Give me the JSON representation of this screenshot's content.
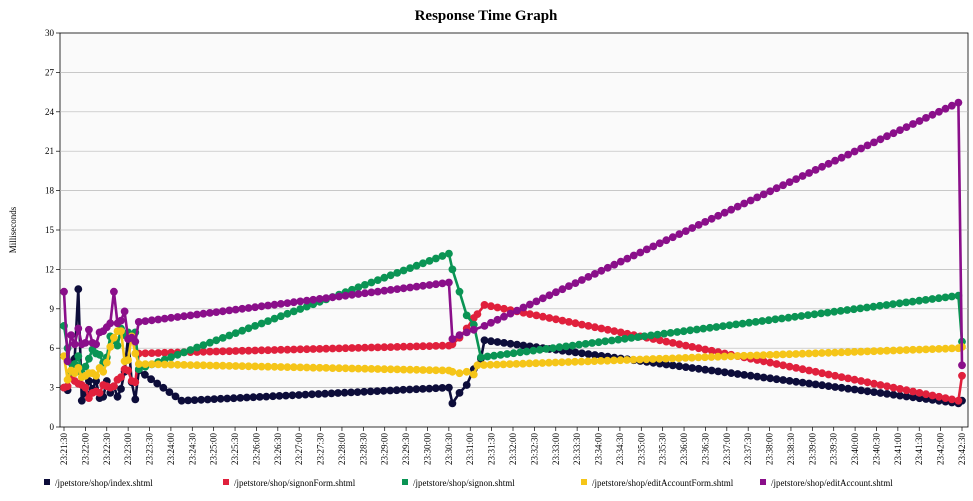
{
  "chart_data": {
    "type": "line",
    "title": "Response Time Graph",
    "ylabel": "Milliseconds",
    "xlabel": "",
    "ylim": [
      0,
      30
    ],
    "yticks": [
      0,
      3,
      6,
      9,
      12,
      15,
      18,
      21,
      24,
      27,
      30
    ],
    "x_start": "23:21:30",
    "x_end": "23:42:30",
    "grid": true,
    "legend": "bottom",
    "x_tick_labels": [
      "23:21:30",
      "23:22:00",
      "23:22:30",
      "23:23:00",
      "23:23:30",
      "23:24:00",
      "23:24:30",
      "23:25:00",
      "23:25:30",
      "23:26:00",
      "23:26:30",
      "23:27:00",
      "23:27:30",
      "23:28:00",
      "23:28:30",
      "23:29:00",
      "23:29:30",
      "23:30:00",
      "23:30:30",
      "23:31:00",
      "23:31:30",
      "23:32:00",
      "23:32:30",
      "23:33:00",
      "23:33:30",
      "23:34:00",
      "23:34:30",
      "23:35:00",
      "23:35:30",
      "23:36:00",
      "23:36:30",
      "23:37:00",
      "23:37:30",
      "23:38:00",
      "23:38:30",
      "23:39:00",
      "23:39:30",
      "23:40:00",
      "23:40:30",
      "23:41:00",
      "23:41:30",
      "23:42:00",
      "23:42:30"
    ],
    "series": [
      {
        "name": "/jpetstore/shop/index.shtml",
        "color": "#0d0d3a",
        "points": [
          [
            "23:21:30",
            3.0
          ],
          [
            "23:21:35",
            2.8
          ],
          [
            "23:21:40",
            4.9
          ],
          [
            "23:21:45",
            5.2
          ],
          [
            "23:21:50",
            10.5
          ],
          [
            "23:21:55",
            2.0
          ],
          [
            "23:22:00",
            2.6
          ],
          [
            "23:22:05",
            3.5
          ],
          [
            "23:22:10",
            2.9
          ],
          [
            "23:22:15",
            3.5
          ],
          [
            "23:22:20",
            2.2
          ],
          [
            "23:22:25",
            2.3
          ],
          [
            "23:22:30",
            3.5
          ],
          [
            "23:22:35",
            2.6
          ],
          [
            "23:22:40",
            3.1
          ],
          [
            "23:22:45",
            2.3
          ],
          [
            "23:22:50",
            2.9
          ],
          [
            "23:22:55",
            4.2
          ],
          [
            "23:23:00",
            6.9
          ],
          [
            "23:23:05",
            3.4
          ],
          [
            "23:23:10",
            2.1
          ],
          [
            "23:23:15",
            4.3
          ],
          [
            "23:24:15",
            2.0
          ],
          [
            "23:30:30",
            3.0
          ],
          [
            "23:30:35",
            1.8
          ],
          [
            "23:30:45",
            2.6
          ],
          [
            "23:30:55",
            3.2
          ],
          [
            "23:31:05",
            4.4
          ],
          [
            "23:31:15",
            5.2
          ],
          [
            "23:31:20",
            6.6
          ],
          [
            "23:42:25",
            1.8
          ],
          [
            "23:42:30",
            2.0
          ]
        ]
      },
      {
        "name": "/jpetstore/shop/signonForm.shtml",
        "color": "#e0203c",
        "points": [
          [
            "23:21:30",
            3.0
          ],
          [
            "23:21:35",
            3.1
          ],
          [
            "23:21:40",
            3.9
          ],
          [
            "23:21:45",
            3.5
          ],
          [
            "23:21:50",
            3.3
          ],
          [
            "23:21:55",
            3.2
          ],
          [
            "23:22:00",
            3.0
          ],
          [
            "23:22:05",
            2.2
          ],
          [
            "23:22:10",
            2.6
          ],
          [
            "23:22:15",
            2.7
          ],
          [
            "23:22:20",
            2.6
          ],
          [
            "23:22:25",
            3.2
          ],
          [
            "23:22:30",
            3.1
          ],
          [
            "23:22:35",
            3.0
          ],
          [
            "23:22:40",
            3.1
          ],
          [
            "23:22:45",
            3.6
          ],
          [
            "23:22:50",
            3.8
          ],
          [
            "23:22:55",
            4.4
          ],
          [
            "23:23:00",
            4.3
          ],
          [
            "23:23:05",
            3.5
          ],
          [
            "23:23:10",
            3.4
          ],
          [
            "23:23:15",
            5.6
          ],
          [
            "23:30:30",
            6.2
          ],
          [
            "23:30:35",
            6.3
          ],
          [
            "23:30:45",
            6.8
          ],
          [
            "23:30:55",
            7.5
          ],
          [
            "23:31:05",
            8.3
          ],
          [
            "23:31:10",
            8.6
          ],
          [
            "23:31:20",
            9.3
          ],
          [
            "23:42:25",
            2.0
          ],
          [
            "23:42:30",
            3.9
          ]
        ]
      },
      {
        "name": "/jpetstore/shop/signon.shtml",
        "color": "#0a9454",
        "points": [
          [
            "23:21:30",
            7.7
          ],
          [
            "23:21:35",
            6.0
          ],
          [
            "23:21:40",
            4.2
          ],
          [
            "23:21:45",
            4.8
          ],
          [
            "23:21:50",
            5.4
          ],
          [
            "23:21:55",
            4.1
          ],
          [
            "23:22:00",
            4.6
          ],
          [
            "23:22:05",
            5.2
          ],
          [
            "23:22:10",
            5.9
          ],
          [
            "23:22:15",
            5.6
          ],
          [
            "23:22:20",
            5.5
          ],
          [
            "23:22:25",
            4.9
          ],
          [
            "23:22:30",
            5.3
          ],
          [
            "23:22:35",
            6.9
          ],
          [
            "23:22:40",
            6.6
          ],
          [
            "23:22:45",
            6.2
          ],
          [
            "23:22:50",
            7.5
          ],
          [
            "23:22:55",
            7.0
          ],
          [
            "23:23:00",
            7.2
          ],
          [
            "23:23:05",
            7.0
          ],
          [
            "23:23:10",
            7.2
          ],
          [
            "23:23:15",
            4.4
          ],
          [
            "23:30:30",
            13.2
          ],
          [
            "23:30:35",
            12.0
          ],
          [
            "23:30:45",
            10.3
          ],
          [
            "23:30:55",
            8.5
          ],
          [
            "23:31:05",
            7.8
          ],
          [
            "23:31:15",
            5.3
          ],
          [
            "23:42:25",
            10.0
          ],
          [
            "23:42:30",
            6.5
          ]
        ]
      },
      {
        "name": "/jpetstore/shop/editAccountForm.shtml",
        "color": "#f5c518",
        "points": [
          [
            "23:21:30",
            5.4
          ],
          [
            "23:21:35",
            3.6
          ],
          [
            "23:21:40",
            4.3
          ],
          [
            "23:21:45",
            4.1
          ],
          [
            "23:21:50",
            4.5
          ],
          [
            "23:21:55",
            3.8
          ],
          [
            "23:22:00",
            3.9
          ],
          [
            "23:22:05",
            4.1
          ],
          [
            "23:22:10",
            4.1
          ],
          [
            "23:22:15",
            3.9
          ],
          [
            "23:22:20",
            4.5
          ],
          [
            "23:22:25",
            4.2
          ],
          [
            "23:22:30",
            4.9
          ],
          [
            "23:22:35",
            6.1
          ],
          [
            "23:22:40",
            6.8
          ],
          [
            "23:22:45",
            7.3
          ],
          [
            "23:22:50",
            7.3
          ],
          [
            "23:22:55",
            5.0
          ],
          [
            "23:23:00",
            5.1
          ],
          [
            "23:23:05",
            6.9
          ],
          [
            "23:23:10",
            5.6
          ],
          [
            "23:23:15",
            4.8
          ],
          [
            "23:30:30",
            4.3
          ],
          [
            "23:30:35",
            4.2
          ],
          [
            "23:30:45",
            4.1
          ],
          [
            "23:30:55",
            4.2
          ],
          [
            "23:31:05",
            4.0
          ],
          [
            "23:31:10",
            4.7
          ],
          [
            "23:42:25",
            6.0
          ],
          [
            "23:42:30",
            6.1
          ]
        ]
      },
      {
        "name": "/jpetstore/shop/editAccount.shtml",
        "color": "#8a0f8a",
        "points": [
          [
            "23:21:30",
            10.3
          ],
          [
            "23:21:35",
            5.0
          ],
          [
            "23:21:40",
            7.0
          ],
          [
            "23:21:45",
            6.3
          ],
          [
            "23:21:50",
            7.5
          ],
          [
            "23:21:55",
            6.3
          ],
          [
            "23:22:00",
            6.4
          ],
          [
            "23:22:05",
            7.4
          ],
          [
            "23:22:10",
            6.4
          ],
          [
            "23:22:15",
            6.3
          ],
          [
            "23:22:20",
            7.2
          ],
          [
            "23:22:25",
            7.3
          ],
          [
            "23:22:30",
            7.6
          ],
          [
            "23:22:35",
            7.9
          ],
          [
            "23:22:40",
            10.3
          ],
          [
            "23:22:45",
            7.9
          ],
          [
            "23:22:50",
            8.1
          ],
          [
            "23:22:55",
            8.8
          ],
          [
            "23:23:00",
            6.7
          ],
          [
            "23:23:05",
            6.8
          ],
          [
            "23:23:10",
            6.5
          ],
          [
            "23:23:15",
            8.0
          ],
          [
            "23:30:30",
            11.0
          ],
          [
            "23:30:35",
            6.7
          ],
          [
            "23:30:45",
            7.0
          ],
          [
            "23:30:55",
            7.2
          ],
          [
            "23:31:05",
            7.4
          ],
          [
            "23:31:20",
            7.7
          ],
          [
            "23:42:25",
            24.7
          ],
          [
            "23:42:30",
            4.7
          ]
        ]
      }
    ]
  }
}
